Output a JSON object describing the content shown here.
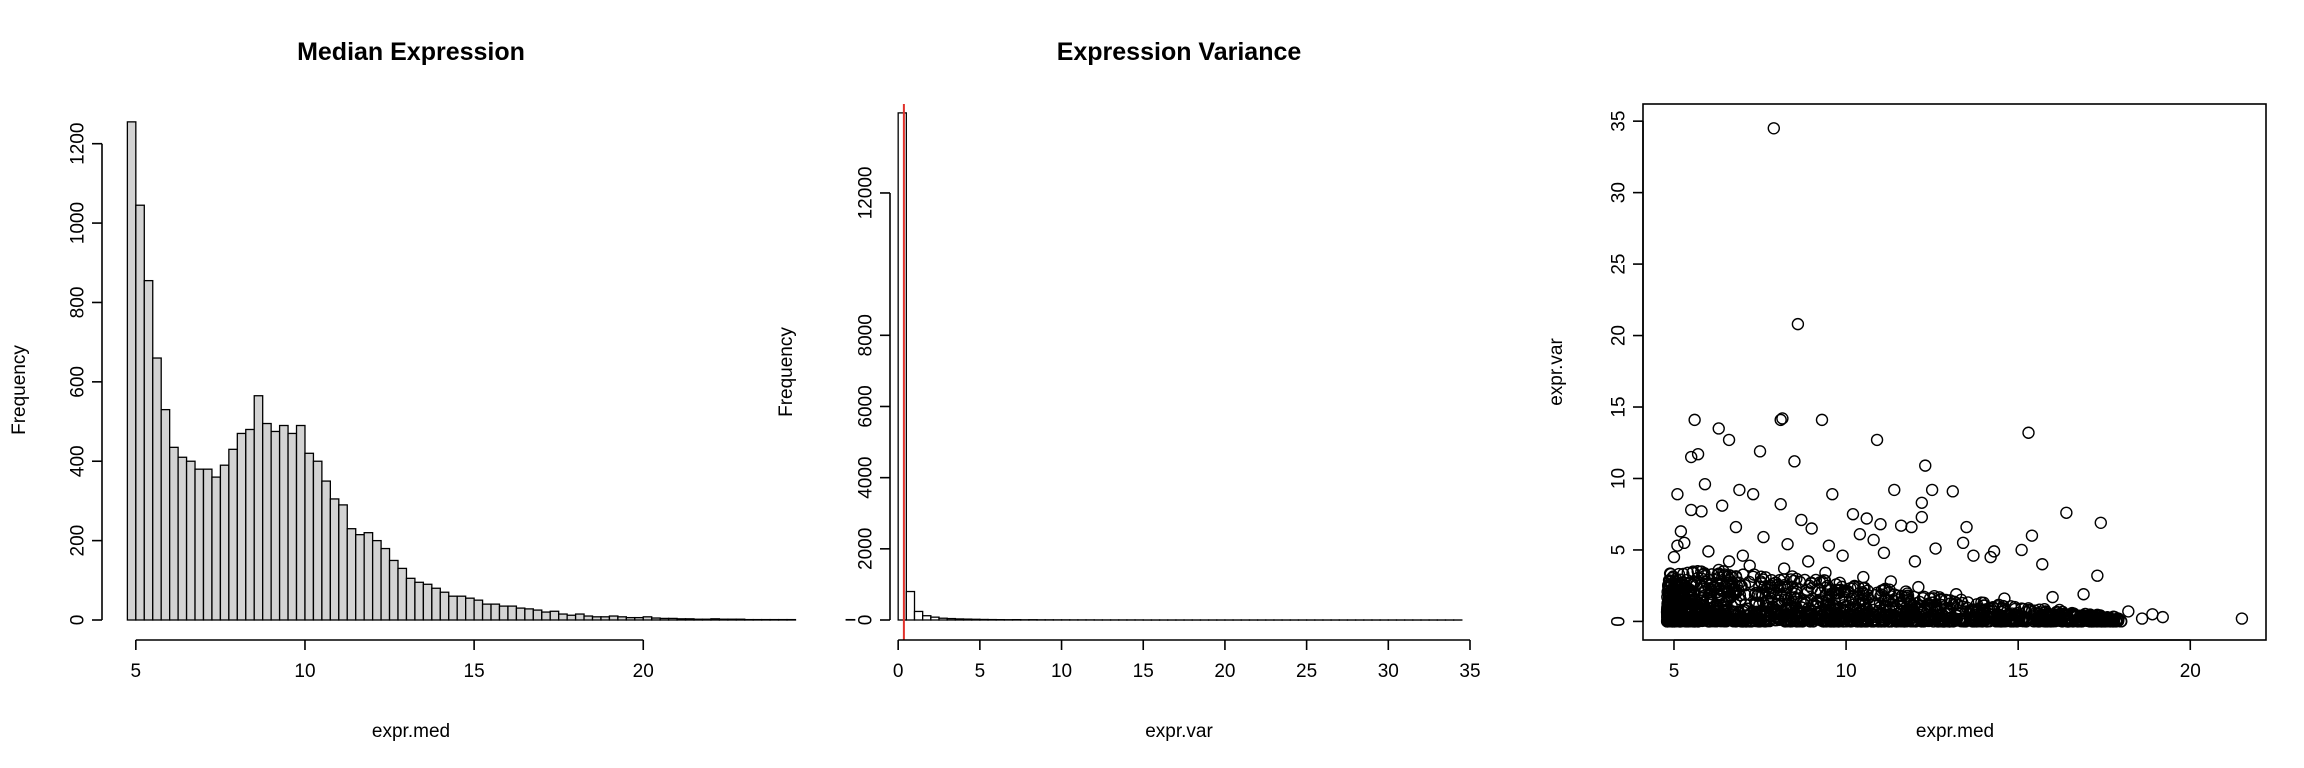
{
  "chart_data": [
    {
      "type": "bar",
      "title": "Median Expression",
      "xlabel": "expr.med",
      "ylabel": "Frequency",
      "xlim": [
        4,
        21.5
      ],
      "ylim": [
        0,
        1300
      ],
      "x_ticks": [
        5,
        10,
        15,
        20
      ],
      "y_ticks": [
        0,
        200,
        400,
        600,
        800,
        1000,
        1200
      ],
      "bin_start": 4.75,
      "bin_width": 0.25,
      "values": [
        1255,
        1045,
        855,
        660,
        530,
        435,
        410,
        400,
        380,
        380,
        360,
        390,
        430,
        470,
        480,
        565,
        495,
        475,
        490,
        470,
        490,
        420,
        400,
        350,
        305,
        290,
        230,
        215,
        220,
        200,
        180,
        150,
        130,
        105,
        95,
        90,
        80,
        70,
        60,
        60,
        55,
        50,
        40,
        40,
        35,
        35,
        30,
        28,
        25,
        20,
        22,
        15,
        12,
        15,
        10,
        8,
        8,
        10,
        8,
        6,
        6,
        8,
        5,
        4,
        4,
        3,
        3,
        2,
        2,
        3,
        2,
        2,
        2,
        1,
        1,
        1,
        1,
        1,
        1,
        0,
        0,
        0,
        0,
        0,
        0,
        1
      ],
      "fill": "#d3d3d3",
      "stroke": "#000000"
    },
    {
      "type": "bar",
      "title": "Expression Variance",
      "xlabel": "expr.var",
      "ylabel": "Frequency",
      "xlim": [
        -0.5,
        35
      ],
      "ylim": [
        0,
        14500
      ],
      "x_ticks": [
        0,
        5,
        10,
        15,
        20,
        25,
        30,
        35
      ],
      "y_ticks": [
        0,
        2000,
        4000,
        6000,
        8000,
        12000
      ],
      "bin_start": 0,
      "bin_width": 0.5,
      "values": [
        14250,
        800,
        240,
        120,
        80,
        50,
        40,
        30,
        25,
        20,
        15,
        12,
        10,
        8,
        10,
        6,
        8,
        5,
        5,
        4,
        4,
        3,
        3,
        3,
        2,
        2,
        2,
        2,
        2,
        2,
        1,
        1,
        1,
        1,
        1,
        1,
        1,
        1,
        1,
        1,
        1,
        1,
        1,
        1,
        1,
        1,
        1,
        1,
        1,
        1,
        1,
        1,
        1,
        1,
        1,
        1,
        1,
        1,
        1,
        1,
        1,
        1,
        1,
        1,
        1,
        1,
        1,
        1,
        1
      ],
      "vline": 0.35,
      "vline_color": "#e0302a",
      "fill": "#ffffff",
      "stroke": "#000000"
    },
    {
      "type": "scatter",
      "title": "",
      "xlabel": "expr.med",
      "ylabel": "expr.var",
      "xlim": [
        4.1,
        22.2
      ],
      "ylim": [
        -1.3,
        36.2
      ],
      "x_ticks": [
        5,
        10,
        15,
        20
      ],
      "y_ticks": [
        0,
        5,
        10,
        15,
        20,
        25,
        30,
        35
      ],
      "marker": "open-circle",
      "points": [
        [
          7.9,
          34.5
        ],
        [
          8.6,
          20.8
        ],
        [
          5.6,
          14.1
        ],
        [
          8.1,
          14.1
        ],
        [
          8.15,
          14.2
        ],
        [
          9.3,
          14.1
        ],
        [
          15.3,
          13.2
        ],
        [
          6.3,
          13.5
        ],
        [
          6.6,
          12.7
        ],
        [
          10.9,
          12.7
        ],
        [
          7.5,
          11.9
        ],
        [
          5.5,
          11.5
        ],
        [
          5.7,
          11.7
        ],
        [
          8.5,
          11.2
        ],
        [
          12.3,
          10.9
        ],
        [
          5.9,
          9.6
        ],
        [
          5.1,
          8.9
        ],
        [
          6.9,
          9.2
        ],
        [
          11.4,
          9.2
        ],
        [
          12.5,
          9.2
        ],
        [
          13.1,
          9.1
        ],
        [
          9.6,
          8.9
        ],
        [
          7.3,
          8.9
        ],
        [
          8.1,
          8.2
        ],
        [
          12.2,
          8.3
        ],
        [
          6.4,
          8.1
        ],
        [
          5.5,
          7.8
        ],
        [
          5.8,
          7.7
        ],
        [
          16.4,
          7.6
        ],
        [
          10.2,
          7.5
        ],
        [
          10.6,
          7.2
        ],
        [
          8.7,
          7.1
        ],
        [
          11.0,
          6.8
        ],
        [
          12.2,
          7.3
        ],
        [
          11.6,
          6.7
        ],
        [
          13.5,
          6.6
        ],
        [
          6.8,
          6.6
        ],
        [
          11.9,
          6.6
        ],
        [
          5.2,
          6.3
        ],
        [
          9.0,
          6.5
        ],
        [
          17.4,
          6.9
        ],
        [
          10.4,
          6.1
        ],
        [
          15.4,
          6.0
        ],
        [
          7.6,
          5.9
        ],
        [
          5.3,
          5.5
        ],
        [
          5.1,
          5.3
        ],
        [
          8.3,
          5.4
        ],
        [
          9.5,
          5.3
        ],
        [
          10.8,
          5.7
        ],
        [
          12.6,
          5.1
        ],
        [
          13.4,
          5.5
        ],
        [
          14.3,
          4.9
        ],
        [
          15.1,
          5.0
        ],
        [
          6.0,
          4.9
        ],
        [
          7.0,
          4.6
        ],
        [
          9.9,
          4.6
        ],
        [
          11.1,
          4.8
        ],
        [
          13.7,
          4.6
        ],
        [
          14.2,
          4.5
        ],
        [
          5.0,
          4.5
        ],
        [
          6.6,
          4.2
        ],
        [
          8.9,
          4.2
        ],
        [
          12.0,
          4.2
        ],
        [
          15.7,
          4.0
        ],
        [
          17.3,
          3.2
        ],
        [
          16.9,
          1.9
        ],
        [
          16.0,
          1.7
        ],
        [
          14.6,
          1.6
        ],
        [
          18.2,
          0.7
        ],
        [
          18.9,
          0.5
        ],
        [
          19.2,
          0.3
        ],
        [
          21.5,
          0.2
        ],
        [
          18.6,
          0.2
        ],
        [
          17.8,
          0.3
        ],
        [
          16.6,
          0.5
        ],
        [
          16.2,
          0.8
        ],
        [
          15.1,
          0.9
        ],
        [
          14.0,
          1.3
        ],
        [
          13.2,
          1.9
        ],
        [
          12.1,
          2.4
        ],
        [
          11.3,
          2.8
        ],
        [
          10.5,
          3.1
        ],
        [
          9.4,
          3.4
        ],
        [
          8.2,
          3.7
        ],
        [
          7.2,
          3.9
        ],
        [
          6.3,
          3.6
        ],
        [
          5.4,
          3.4
        ],
        [
          5.8,
          3.0
        ],
        [
          6.9,
          2.7
        ],
        [
          7.8,
          2.5
        ],
        [
          8.8,
          2.9
        ],
        [
          9.7,
          2.2
        ],
        [
          10.9,
          2.0
        ],
        [
          11.8,
          1.8
        ],
        [
          12.9,
          1.5
        ],
        [
          13.8,
          1.2
        ],
        [
          14.9,
          1.0
        ],
        [
          15.8,
          0.7
        ],
        [
          16.8,
          0.4
        ],
        [
          17.6,
          0.2
        ]
      ],
      "dense_band": {
        "x_range": [
          4.8,
          18.0
        ],
        "ymax_at_x": [
          [
            4.8,
            3.4
          ],
          [
            6,
            3.6
          ],
          [
            8,
            3.3
          ],
          [
            10,
            2.7
          ],
          [
            12,
            2.0
          ],
          [
            14,
            1.3
          ],
          [
            16,
            0.8
          ],
          [
            18,
            0.3
          ]
        ],
        "count": 1500
      }
    }
  ]
}
